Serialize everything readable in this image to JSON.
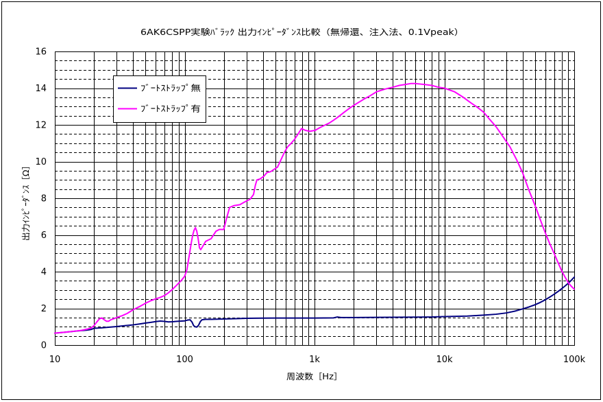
{
  "chart_data": {
    "type": "line",
    "title": "6AK6CSPP実験ﾊﾞﾗｯｸ 出力ｲﾝﾋﾟｰﾀﾞﾝｽ比較（無帰還、注入法、0.1Vpeak）",
    "xlabel": "周波数［Hz］",
    "ylabel": "出力ｲﾝﾋﾟｰﾀﾞﾝｽ［Ω］",
    "x_scale": "log",
    "xlim": [
      10,
      100000
    ],
    "ylim": [
      0,
      16
    ],
    "x_ticks": [
      10,
      100,
      1000,
      10000,
      100000
    ],
    "x_tick_labels": [
      "10",
      "100",
      "1k",
      "10k",
      "100k"
    ],
    "y_ticks": [
      0,
      2,
      4,
      6,
      8,
      10,
      12,
      14,
      16
    ],
    "y_tick_labels": [
      "0",
      "2",
      "4",
      "6",
      "8",
      "10",
      "12",
      "14",
      "16"
    ],
    "grid": true,
    "legend_position": "top-left",
    "series": [
      {
        "name": "ﾌﾞｰﾄｽﾄﾗｯﾌﾟ無",
        "color": "#000080",
        "points": [
          [
            10,
            0.65
          ],
          [
            12,
            0.7
          ],
          [
            15,
            0.77
          ],
          [
            18,
            0.82
          ],
          [
            19,
            0.85
          ],
          [
            20,
            0.91
          ],
          [
            23,
            0.94
          ],
          [
            26,
            0.97
          ],
          [
            30,
            1.01
          ],
          [
            35,
            1.06
          ],
          [
            40,
            1.1
          ],
          [
            45,
            1.15
          ],
          [
            50,
            1.2
          ],
          [
            55,
            1.24
          ],
          [
            60,
            1.28
          ],
          [
            65,
            1.31
          ],
          [
            70,
            1.29
          ],
          [
            75,
            1.26
          ],
          [
            80,
            1.27
          ],
          [
            90,
            1.3
          ],
          [
            100,
            1.32
          ],
          [
            105,
            1.36
          ],
          [
            110,
            1.38
          ],
          [
            114,
            1.25
          ],
          [
            117,
            1.07
          ],
          [
            120,
            1.0
          ],
          [
            124,
            0.98
          ],
          [
            128,
            1.08
          ],
          [
            132,
            1.28
          ],
          [
            136,
            1.38
          ],
          [
            145,
            1.4
          ],
          [
            160,
            1.4
          ],
          [
            200,
            1.42
          ],
          [
            250,
            1.44
          ],
          [
            300,
            1.46
          ],
          [
            500,
            1.47
          ],
          [
            1000,
            1.47
          ],
          [
            1400,
            1.48
          ],
          [
            1500,
            1.53
          ],
          [
            1600,
            1.5
          ],
          [
            2000,
            1.5
          ],
          [
            3000,
            1.51
          ],
          [
            5000,
            1.52
          ],
          [
            8000,
            1.53
          ],
          [
            10000,
            1.55
          ],
          [
            15000,
            1.58
          ],
          [
            20000,
            1.63
          ],
          [
            25000,
            1.68
          ],
          [
            30000,
            1.75
          ],
          [
            35000,
            1.85
          ],
          [
            40000,
            1.97
          ],
          [
            45000,
            2.08
          ],
          [
            50000,
            2.2
          ],
          [
            55000,
            2.33
          ],
          [
            60000,
            2.47
          ],
          [
            65000,
            2.62
          ],
          [
            70000,
            2.77
          ],
          [
            75000,
            2.92
          ],
          [
            80000,
            3.07
          ],
          [
            85000,
            3.22
          ],
          [
            90000,
            3.37
          ],
          [
            95000,
            3.53
          ],
          [
            100000,
            3.7
          ]
        ]
      },
      {
        "name": "ﾌﾞｰﾄｽﾄﾗｯﾌﾟ有",
        "color": "#FF00FF",
        "points": [
          [
            10,
            0.65
          ],
          [
            12,
            0.7
          ],
          [
            14,
            0.75
          ],
          [
            16,
            0.8
          ],
          [
            18,
            0.88
          ],
          [
            19,
            0.93
          ],
          [
            20,
            1.05
          ],
          [
            21,
            1.25
          ],
          [
            22,
            1.42
          ],
          [
            23,
            1.48
          ],
          [
            24,
            1.38
          ],
          [
            25,
            1.3
          ],
          [
            26,
            1.3
          ],
          [
            27,
            1.38
          ],
          [
            28,
            1.42
          ],
          [
            30,
            1.5
          ],
          [
            33,
            1.6
          ],
          [
            36,
            1.72
          ],
          [
            40,
            1.92
          ],
          [
            45,
            2.1
          ],
          [
            50,
            2.28
          ],
          [
            55,
            2.42
          ],
          [
            60,
            2.52
          ],
          [
            65,
            2.6
          ],
          [
            70,
            2.7
          ],
          [
            75,
            2.85
          ],
          [
            80,
            3.02
          ],
          [
            85,
            3.2
          ],
          [
            90,
            3.38
          ],
          [
            95,
            3.55
          ],
          [
            100,
            3.75
          ],
          [
            104,
            4.1
          ],
          [
            108,
            4.8
          ],
          [
            112,
            5.5
          ],
          [
            115,
            5.95
          ],
          [
            118,
            6.25
          ],
          [
            121,
            6.4
          ],
          [
            124,
            6.2
          ],
          [
            127,
            5.8
          ],
          [
            130,
            5.3
          ],
          [
            133,
            5.2
          ],
          [
            137,
            5.35
          ],
          [
            145,
            5.65
          ],
          [
            160,
            5.8
          ],
          [
            174,
            6.2
          ],
          [
            185,
            6.3
          ],
          [
            200,
            6.3
          ],
          [
            210,
            6.9
          ],
          [
            222,
            7.5
          ],
          [
            240,
            7.6
          ],
          [
            266,
            7.65
          ],
          [
            290,
            7.8
          ],
          [
            319,
            7.95
          ],
          [
            339,
            8.2
          ],
          [
            350,
            8.7
          ],
          [
            360,
            9.0
          ],
          [
            380,
            9.05
          ],
          [
            407,
            9.2
          ],
          [
            430,
            9.4
          ],
          [
            459,
            9.45
          ],
          [
            519,
            9.7
          ],
          [
            560,
            10.2
          ],
          [
            586,
            10.5
          ],
          [
            620,
            10.8
          ],
          [
            662,
            11.0
          ],
          [
            700,
            11.2
          ],
          [
            747,
            11.5
          ],
          [
            794,
            11.8
          ],
          [
            850,
            11.7
          ],
          [
            920,
            11.65
          ],
          [
            1012,
            11.7
          ],
          [
            1100,
            11.85
          ],
          [
            1213,
            12.0
          ],
          [
            1300,
            12.1
          ],
          [
            1400,
            12.25
          ],
          [
            1500,
            12.4
          ],
          [
            1700,
            12.7
          ],
          [
            1900,
            12.95
          ],
          [
            2100,
            13.15
          ],
          [
            2400,
            13.4
          ],
          [
            2700,
            13.6
          ],
          [
            3000,
            13.8
          ],
          [
            3500,
            13.95
          ],
          [
            4000,
            14.05
          ],
          [
            4500,
            14.15
          ],
          [
            5000,
            14.2
          ],
          [
            5500,
            14.25
          ],
          [
            6000,
            14.25
          ],
          [
            7000,
            14.2
          ],
          [
            8000,
            14.15
          ],
          [
            9000,
            14.05
          ],
          [
            10000,
            14.0
          ],
          [
            12000,
            13.8
          ],
          [
            14000,
            13.5
          ],
          [
            16000,
            13.2
          ],
          [
            18000,
            12.95
          ],
          [
            20000,
            12.7
          ],
          [
            22000,
            12.35
          ],
          [
            25000,
            11.9
          ],
          [
            28000,
            11.4
          ],
          [
            32000,
            10.8
          ],
          [
            36000,
            10.1
          ],
          [
            40000,
            9.4
          ],
          [
            45000,
            8.4
          ],
          [
            50000,
            7.6
          ],
          [
            55000,
            6.8
          ],
          [
            60000,
            6.1
          ],
          [
            65000,
            5.5
          ],
          [
            70000,
            5.0
          ],
          [
            75000,
            4.5
          ],
          [
            80000,
            4.05
          ],
          [
            85000,
            3.7
          ],
          [
            90000,
            3.4
          ],
          [
            95000,
            3.2
          ],
          [
            100000,
            3.05
          ]
        ]
      }
    ]
  }
}
